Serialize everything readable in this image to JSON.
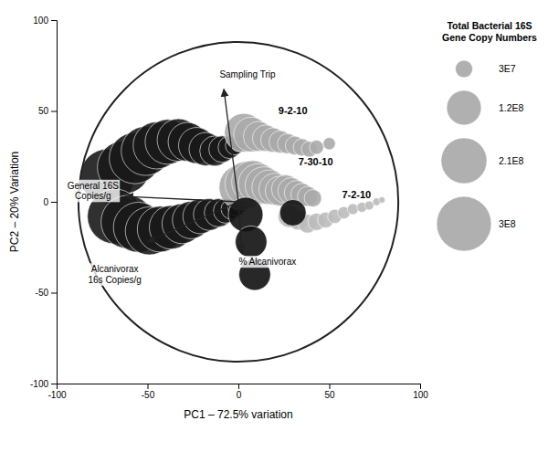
{
  "chart_data": {
    "type": "scatter",
    "xlabel": "PC1 – 72.5% variation",
    "ylabel": "PC2 – 20% Variation",
    "xlim": [
      -100,
      100
    ],
    "ylim": [
      -100,
      100
    ],
    "xticks": [
      -100,
      -50,
      0,
      50,
      100
    ],
    "yticks": [
      -100,
      -50,
      0,
      50,
      100
    ],
    "grid": false,
    "circle": {
      "center": [
        0,
        0
      ],
      "radius": 88
    },
    "legend": {
      "title": "Total Bacterial 16S\nGene Copy Numbers",
      "sizes": [
        30000000.0,
        120000000.0,
        210000000.0,
        300000000.0
      ],
      "labels": [
        "3E7",
        "1.2E8",
        "2.1E8",
        "3E8"
      ],
      "color": "#b0b0b0"
    },
    "arrows": [
      {
        "x0": 0,
        "y0": 0,
        "x1": -62,
        "y1": 3,
        "label": "General 16S\nCopies/g",
        "label_x": -80,
        "label_y": 6
      },
      {
        "x0": 0,
        "y0": 0,
        "x1": -50,
        "y1": -22,
        "label": "Alcanivorax\n16s Copies/g",
        "label_x": -68,
        "label_y": -40
      },
      {
        "x0": 0,
        "y0": 0,
        "x1": 2,
        "y1": -28,
        "label": "% Alcanivorax",
        "label_x": 16,
        "label_y": -33
      },
      {
        "x0": 0,
        "y0": 0,
        "x1": -8,
        "y1": 62,
        "label": "Sampling Trip",
        "label_x": 5,
        "label_y": 70
      }
    ],
    "series": [
      {
        "color": "#1a1a1a",
        "x": [
          -72,
          -63,
          -57,
          -51,
          -45,
          -39,
          -33,
          -28,
          -23,
          -18,
          -13,
          -9,
          -5,
          -2,
          0
        ],
        "y": [
          14,
          19,
          24,
          28,
          31,
          33,
          34,
          33,
          31,
          29,
          28,
          29,
          30,
          31,
          32
        ],
        "size": [
          300000000.0,
          280000000.0,
          260000000.0,
          240000000.0,
          220000000.0,
          200000000.0,
          180000000.0,
          150000000.0,
          130000000.0,
          110000000.0,
          90000000.0,
          70000000.0,
          50000000.0,
          35000000.0,
          25000000.0
        ]
      },
      {
        "color": "#1a1a1a",
        "x": [
          -68,
          -61,
          -55,
          -49,
          -43,
          -37,
          -31,
          -26,
          -21,
          -16,
          -11,
          -7,
          -4,
          -1,
          1
        ],
        "y": [
          -8,
          -11,
          -14,
          -16,
          -15,
          -14,
          -12,
          -10,
          -8,
          -7,
          -6,
          -5,
          -4,
          -3,
          -2
        ],
        "size": [
          300000000.0,
          280000000.0,
          250000000.0,
          230000000.0,
          210000000.0,
          190000000.0,
          160000000.0,
          140000000.0,
          120000000.0,
          100000000.0,
          80000000.0,
          60000000.0,
          40000000.0,
          30000000.0,
          20000000.0
        ]
      },
      {
        "name": "9-2-10",
        "label_x": 22,
        "label_y": 48,
        "color": "#aaaaaa",
        "x": [
          3,
          7,
          11,
          15,
          19,
          23,
          27,
          31,
          35,
          39,
          43,
          50
        ],
        "y": [
          38,
          37,
          36,
          35,
          34,
          33,
          32,
          31,
          30,
          29,
          30,
          32
        ],
        "size": [
          150000000.0,
          120000000.0,
          90000000.0,
          70000000.0,
          60000000.0,
          50000000.0,
          40000000.0,
          35000000.0,
          30000000.0,
          25000000.0,
          20000000.0,
          15000000.0
        ]
      },
      {
        "name": "7-30-10",
        "label_x": 33,
        "label_y": 20,
        "color": "#aaaaaa",
        "x": [
          2,
          5,
          8,
          11,
          14,
          17,
          20,
          23,
          26,
          29,
          32,
          35,
          38,
          41
        ],
        "y": [
          8,
          10,
          11,
          10,
          9,
          8,
          7,
          6,
          7,
          6,
          5,
          4,
          3,
          2
        ],
        "size": [
          210000000.0,
          200000000.0,
          180000000.0,
          160000000.0,
          140000000.0,
          120000000.0,
          100000000.0,
          90000000.0,
          80000000.0,
          70000000.0,
          60000000.0,
          50000000.0,
          40000000.0,
          30000000.0
        ]
      },
      {
        "name": "7-2-10",
        "label_x": 57,
        "label_y": 2,
        "color": "#bbbbbb",
        "x": [
          28,
          33,
          38,
          43,
          48,
          53,
          58,
          63,
          68,
          72,
          76,
          79
        ],
        "y": [
          -8,
          -10,
          -12,
          -11,
          -10,
          -8,
          -6,
          -4,
          -3,
          -2,
          0,
          1
        ],
        "size": [
          50000000.0,
          40000000.0,
          35000000.0,
          30000000.0,
          25000000.0,
          20000000.0,
          15000000.0,
          12000000.0,
          10000000.0,
          8000000.0,
          6000000.0,
          4000000.0
        ]
      },
      {
        "color": "#111111",
        "x": [
          4,
          7,
          9,
          30
        ],
        "y": [
          -7,
          -22,
          -40,
          -6
        ],
        "size": [
          120000000.0,
          100000000.0,
          100000000.0,
          70000000.0
        ]
      }
    ]
  }
}
